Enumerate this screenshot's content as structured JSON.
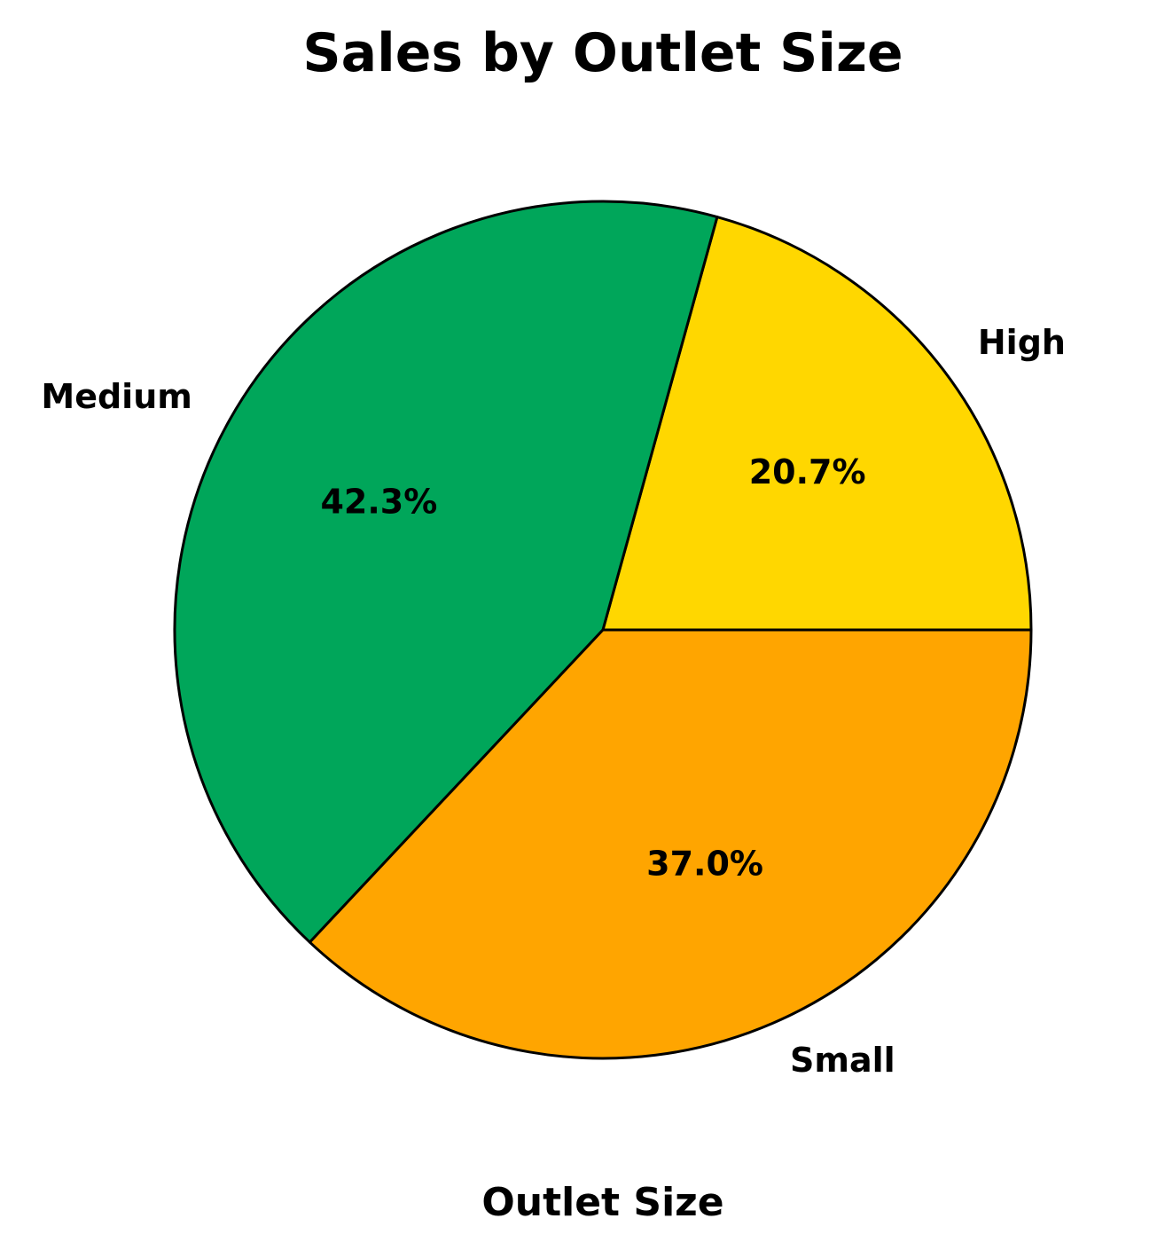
{
  "chart_data": {
    "type": "pie",
    "title": "Sales by Outlet Size",
    "xlabel": "Outlet Size",
    "ylabel": "",
    "categories": [
      "High",
      "Medium",
      "Small"
    ],
    "values": [
      20.7,
      42.3,
      37.0
    ],
    "percent_labels": [
      "20.7%",
      "42.3%",
      "37.0%"
    ],
    "colors": [
      "#FFD700",
      "#00A65A",
      "#FFA500"
    ],
    "start_angle_deg": 0,
    "direction": "counterclockwise",
    "edgecolor": "#000000",
    "legend": "none"
  }
}
